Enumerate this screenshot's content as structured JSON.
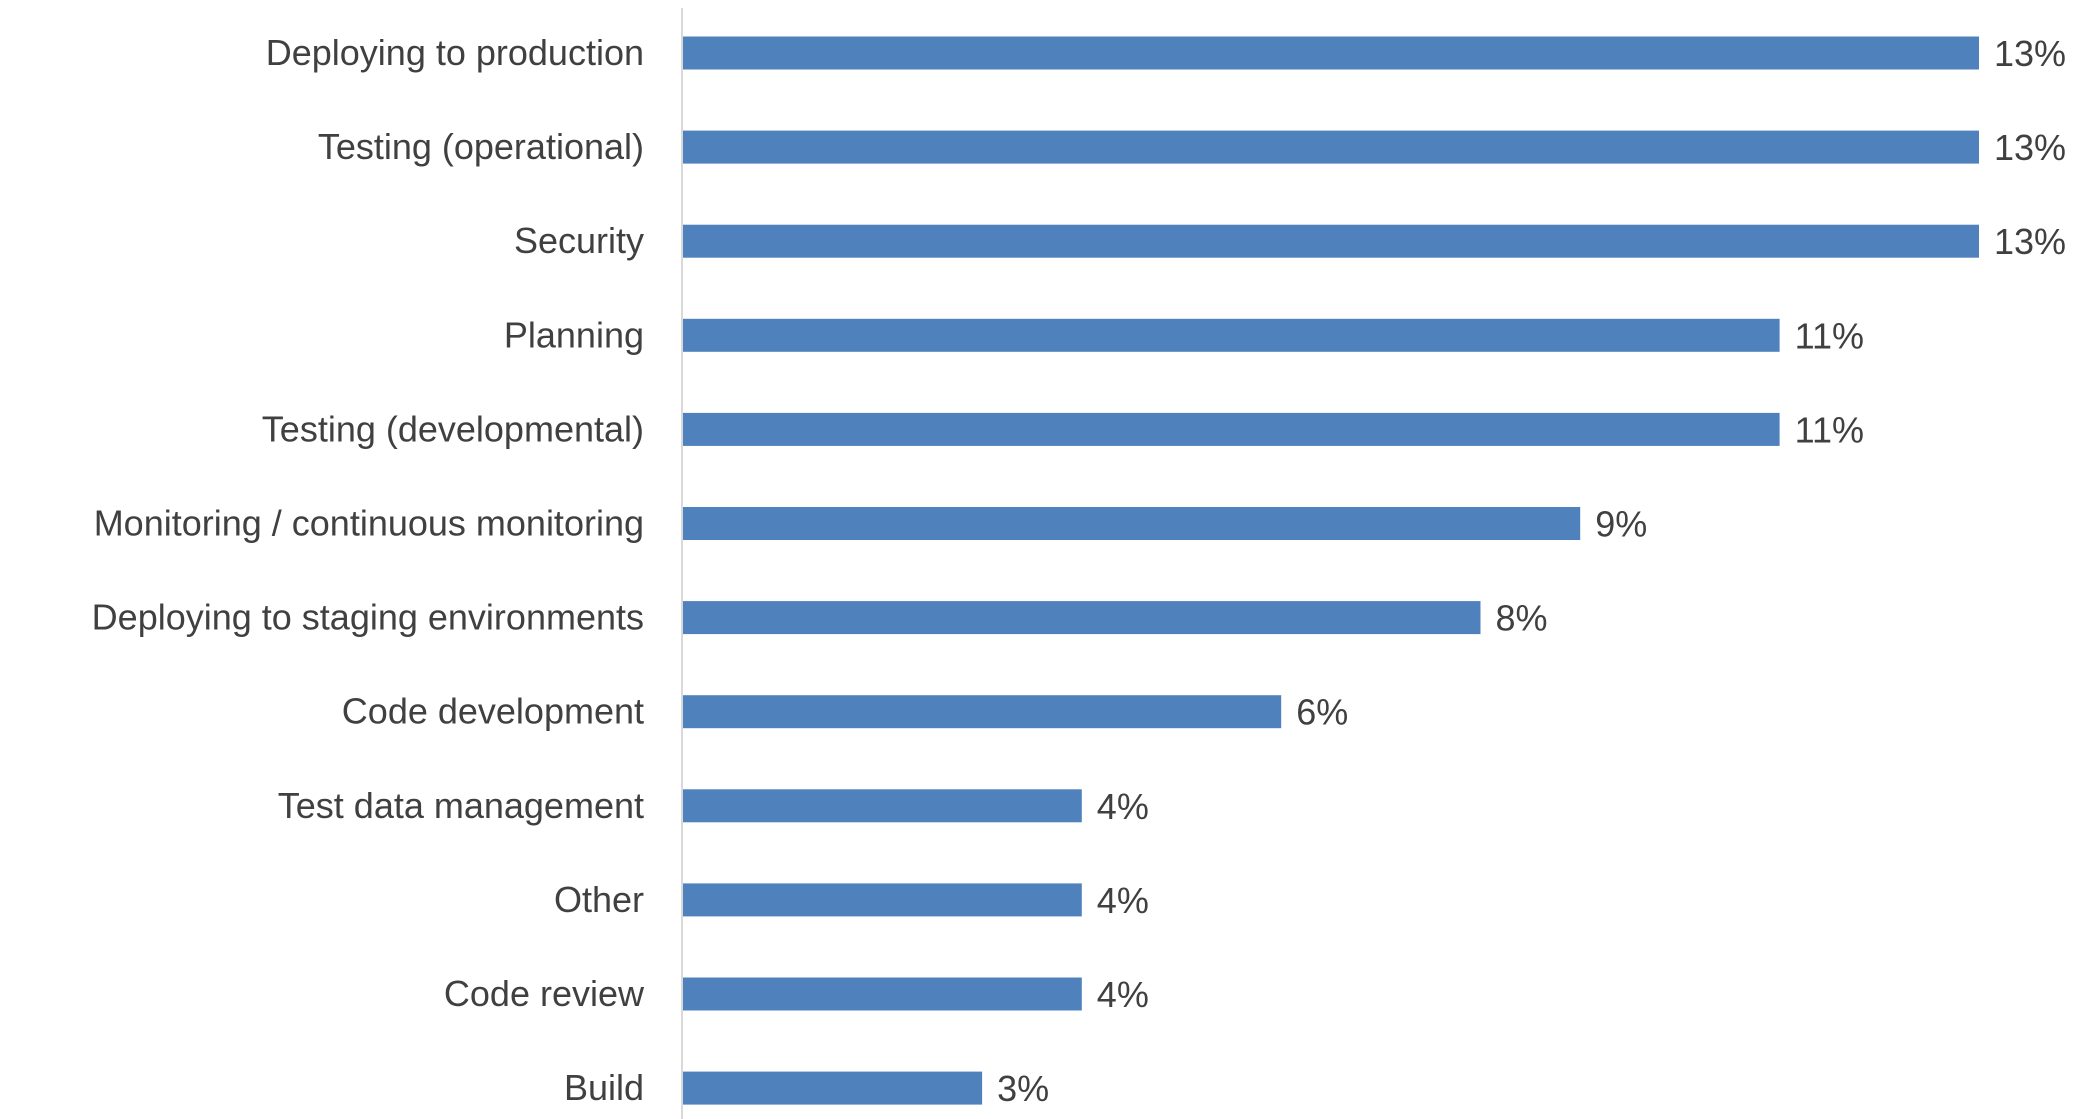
{
  "chart_data": {
    "type": "bar",
    "orientation": "horizontal",
    "title": "",
    "xlabel": "",
    "ylabel": "",
    "categories": [
      "Deploying to production",
      "Testing (operational)",
      "Security",
      "Planning",
      "Testing (developmental)",
      "Monitoring / continuous monitoring",
      "Deploying to staging environments",
      "Code development",
      "Test data management",
      "Other ",
      "Code review",
      "Build"
    ],
    "values": [
      13,
      13,
      13,
      11,
      11,
      9,
      8,
      6,
      4,
      4,
      4,
      3
    ],
    "data_labels": [
      "13%",
      "13%",
      "13%",
      "11%",
      "11%",
      "9%",
      "8%",
      "6%",
      "4%",
      "4%",
      "4%",
      "3%"
    ],
    "unit": "%",
    "xlim": [
      0,
      13
    ],
    "grid": false,
    "legend": "none",
    "colors": {
      "bar": "#4f81bd",
      "axis": "#d9d9d9",
      "category_text": "#404040",
      "label_text": "#404040"
    }
  }
}
